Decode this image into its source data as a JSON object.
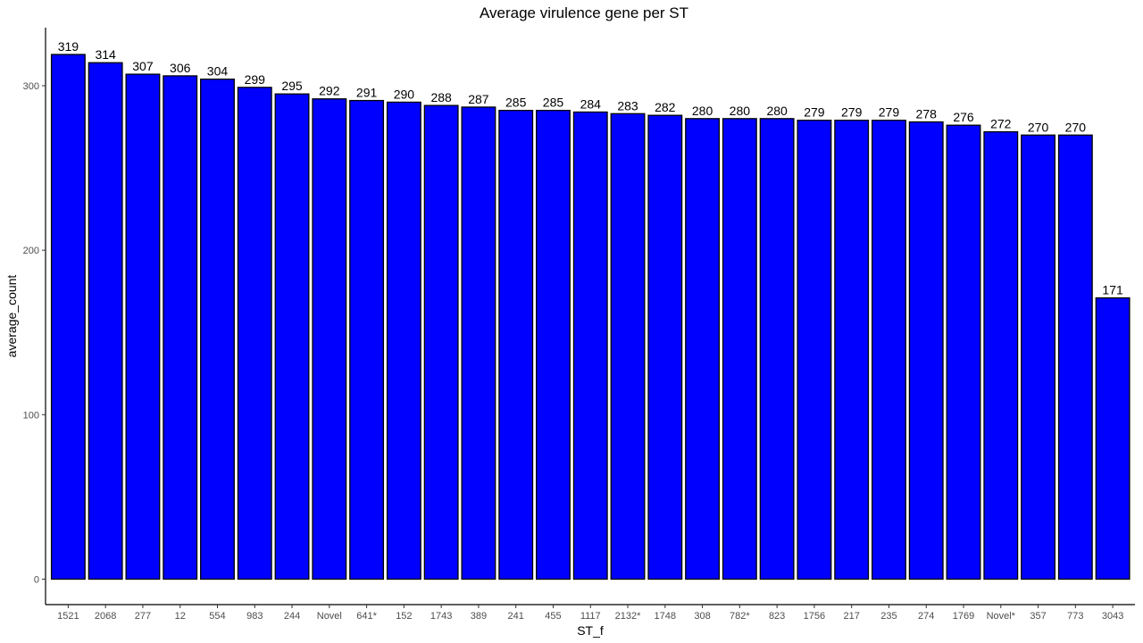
{
  "chart_data": {
    "type": "bar",
    "title": "Average virulence gene per ST",
    "xlabel": "ST_f",
    "ylabel": "average_count",
    "categories": [
      "1521",
      "2068",
      "277",
      "12",
      "554",
      "983",
      "244",
      "Novel",
      "641*",
      "152",
      "1743",
      "389",
      "241",
      "455",
      "1117",
      "2132*",
      "1748",
      "308",
      "782*",
      "823",
      "1756",
      "217",
      "235",
      "274",
      "1769",
      "Novel*",
      "357",
      "773",
      "3043"
    ],
    "values": [
      319,
      314,
      307,
      306,
      304,
      299,
      295,
      292,
      291,
      290,
      288,
      287,
      285,
      285,
      284,
      283,
      282,
      280,
      280,
      280,
      279,
      279,
      279,
      278,
      276,
      272,
      270,
      270,
      171
    ],
    "yticks": [
      0,
      100,
      200,
      300
    ],
    "ylim": [
      -16,
      335
    ],
    "grid": false,
    "bar_color": "#0000FF",
    "bar_outline": "#000000"
  }
}
